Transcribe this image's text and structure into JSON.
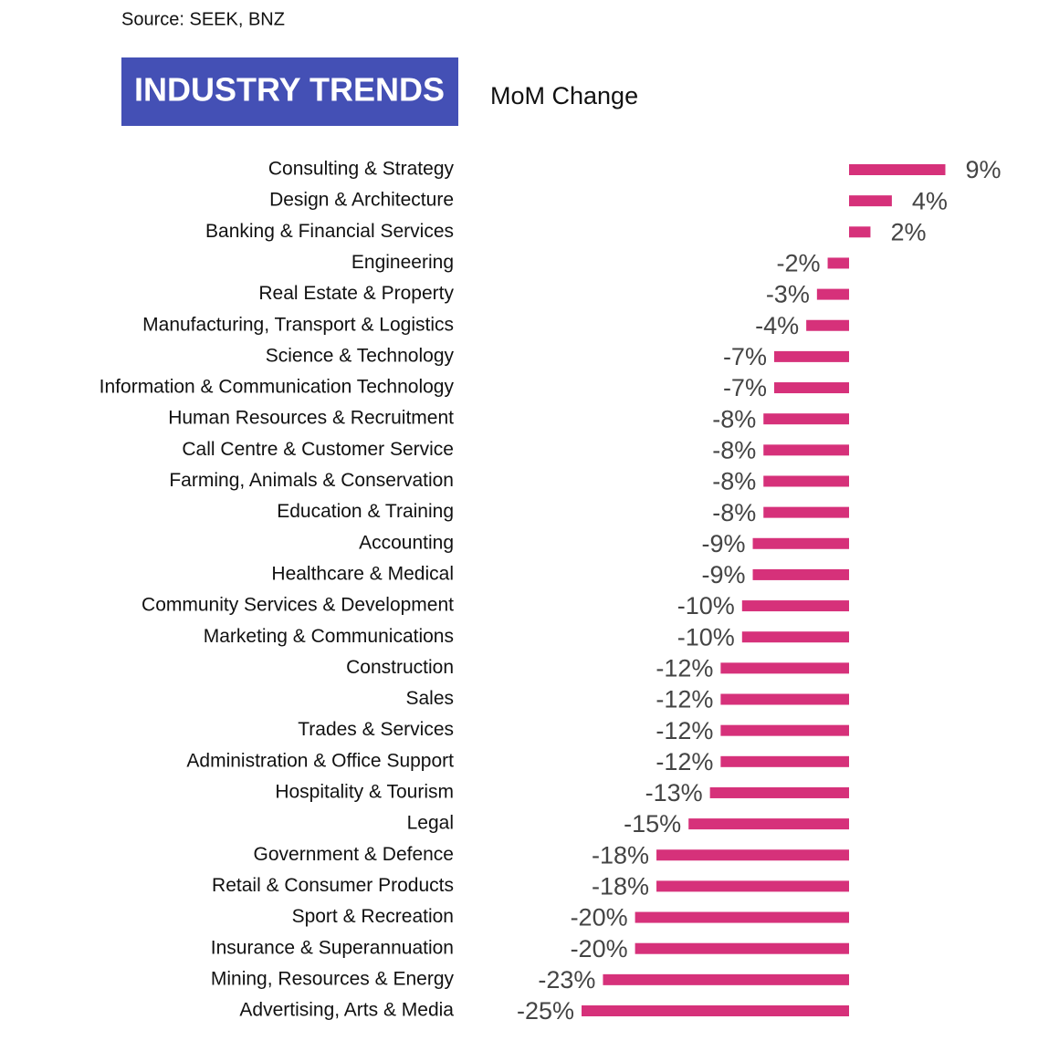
{
  "chart_data": {
    "type": "bar",
    "orientation": "horizontal",
    "source": "Source: SEEK, BNZ",
    "title": "INDUSTRY TRENDS",
    "subtitle": "MoM Change",
    "color": "#d6317a",
    "categories": [
      "Consulting & Strategy",
      "Design & Architecture",
      "Banking & Financial Services",
      "Engineering",
      "Real Estate & Property",
      "Manufacturing, Transport & Logistics",
      "Science & Technology",
      "Information & Communication Technology",
      "Human Resources & Recruitment",
      "Call Centre & Customer Service",
      "Farming, Animals & Conservation",
      "Education & Training",
      "Accounting",
      "Healthcare & Medical",
      "Community Services & Development",
      "Marketing & Communications",
      "Construction",
      "Sales",
      "Trades & Services",
      "Administration & Office Support",
      "Hospitality & Tourism",
      "Legal",
      "Government & Defence",
      "Retail & Consumer Products",
      "Sport & Recreation",
      "Insurance & Superannuation",
      "Mining, Resources & Energy",
      "Advertising, Arts & Media"
    ],
    "values": [
      9,
      4,
      2,
      -2,
      -3,
      -4,
      -7,
      -7,
      -8,
      -8,
      -8,
      -8,
      -9,
      -9,
      -10,
      -10,
      -12,
      -12,
      -12,
      -12,
      -13,
      -15,
      -18,
      -18,
      -20,
      -20,
      -23,
      -25
    ],
    "value_labels": [
      "9%",
      "4%",
      "2%",
      "-2%",
      "-3%",
      "-4%",
      "-7%",
      "-7%",
      "-8%",
      "-8%",
      "-8%",
      "-8%",
      "-9%",
      "-9%",
      "-10%",
      "-10%",
      "-12%",
      "-12%",
      "-12%",
      "-12%",
      "-13%",
      "-15%",
      "-18%",
      "-18%",
      "-20%",
      "-20%",
      "-23%",
      "-25%"
    ]
  }
}
